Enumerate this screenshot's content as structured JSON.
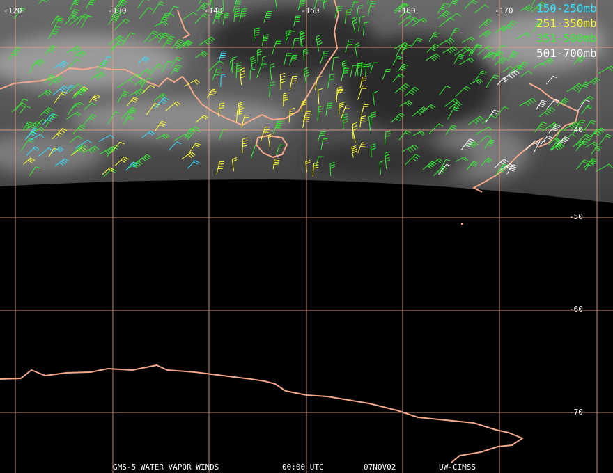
{
  "map": {
    "longitude_labels": [
      "-120",
      "-130",
      "-140",
      "-150",
      "-160",
      "-170"
    ],
    "latitude_labels": [
      "-40",
      "-50",
      "-60",
      "-70"
    ],
    "legend": [
      {
        "label": "150-250mb",
        "color": "#33e0ff"
      },
      {
        "label": "251-350mb",
        "color": "#ffff33"
      },
      {
        "label": "351-500mb",
        "color": "#33ee33"
      },
      {
        "label": "501-700mb",
        "color": "#ffffff"
      }
    ],
    "footer": [
      "GMS-5 WATER VAPOR WINDS",
      "00:00 UTC",
      "07NOV02",
      "UW-CIMSS"
    ]
  }
}
